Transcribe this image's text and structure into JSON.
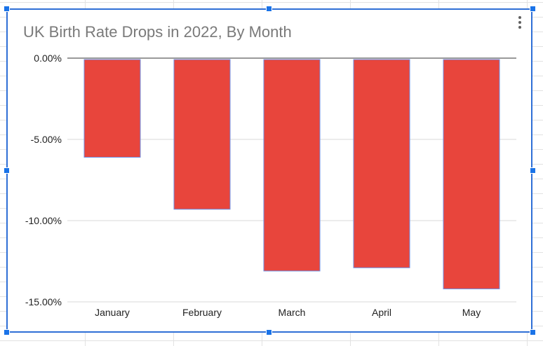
{
  "colors": {
    "bar_fill": "#e8453c",
    "bar_outline": "#6b8fe6",
    "selection": "#1a73e8",
    "gridline": "#d9d9d9",
    "baseline": "#333333",
    "title_text": "#7a7a7a"
  },
  "chart_menu_icon": "more-vert-icon",
  "chart_data": {
    "type": "bar",
    "title": "UK Birth Rate Drops in 2022, By Month",
    "xlabel": "",
    "ylabel": "",
    "categories": [
      "January",
      "February",
      "March",
      "April",
      "May"
    ],
    "values": [
      -6.1,
      -9.3,
      -13.1,
      -12.9,
      -14.2
    ],
    "ylim": [
      -15,
      0
    ],
    "yticks": [
      "0.00%",
      "-5.00%",
      "-10.00%",
      "-15.00%"
    ],
    "ytick_values": [
      0,
      -5,
      -10,
      -15
    ],
    "grid": true,
    "legend": "none"
  }
}
